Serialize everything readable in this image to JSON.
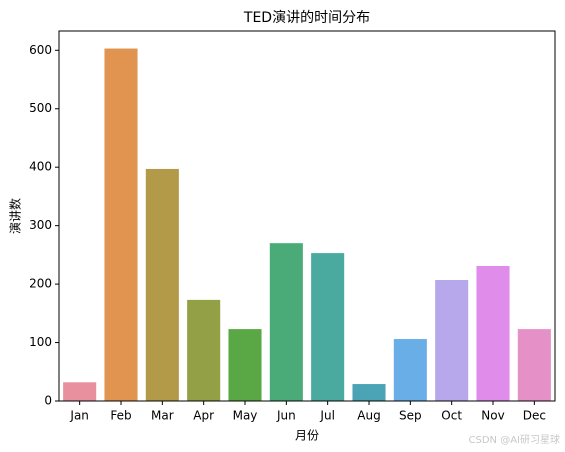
{
  "chart_data": {
    "type": "bar",
    "title": "TED演讲的时间分布",
    "categories": [
      "Jan",
      "Feb",
      "Mar",
      "Apr",
      "May",
      "Jun",
      "Jul",
      "Aug",
      "Sep",
      "Oct",
      "Nov",
      "Dec"
    ],
    "values": [
      32,
      603,
      397,
      173,
      123,
      270,
      253,
      29,
      106,
      207,
      231,
      123
    ],
    "colors": [
      "#e8909e",
      "#e0944f",
      "#b39a49",
      "#93a046",
      "#5aa845",
      "#4aab79",
      "#4aaaa0",
      "#4ba4b6",
      "#6aaee8",
      "#b7a8ec",
      "#e08ceb",
      "#e690c8"
    ],
    "xlabel": "月份",
    "ylabel": "演讲数",
    "ylim": [
      0,
      633
    ],
    "yticks": [
      0,
      100,
      200,
      300,
      400,
      500,
      600
    ],
    "grid": false
  },
  "watermark": "CSDN @AI研习星球"
}
